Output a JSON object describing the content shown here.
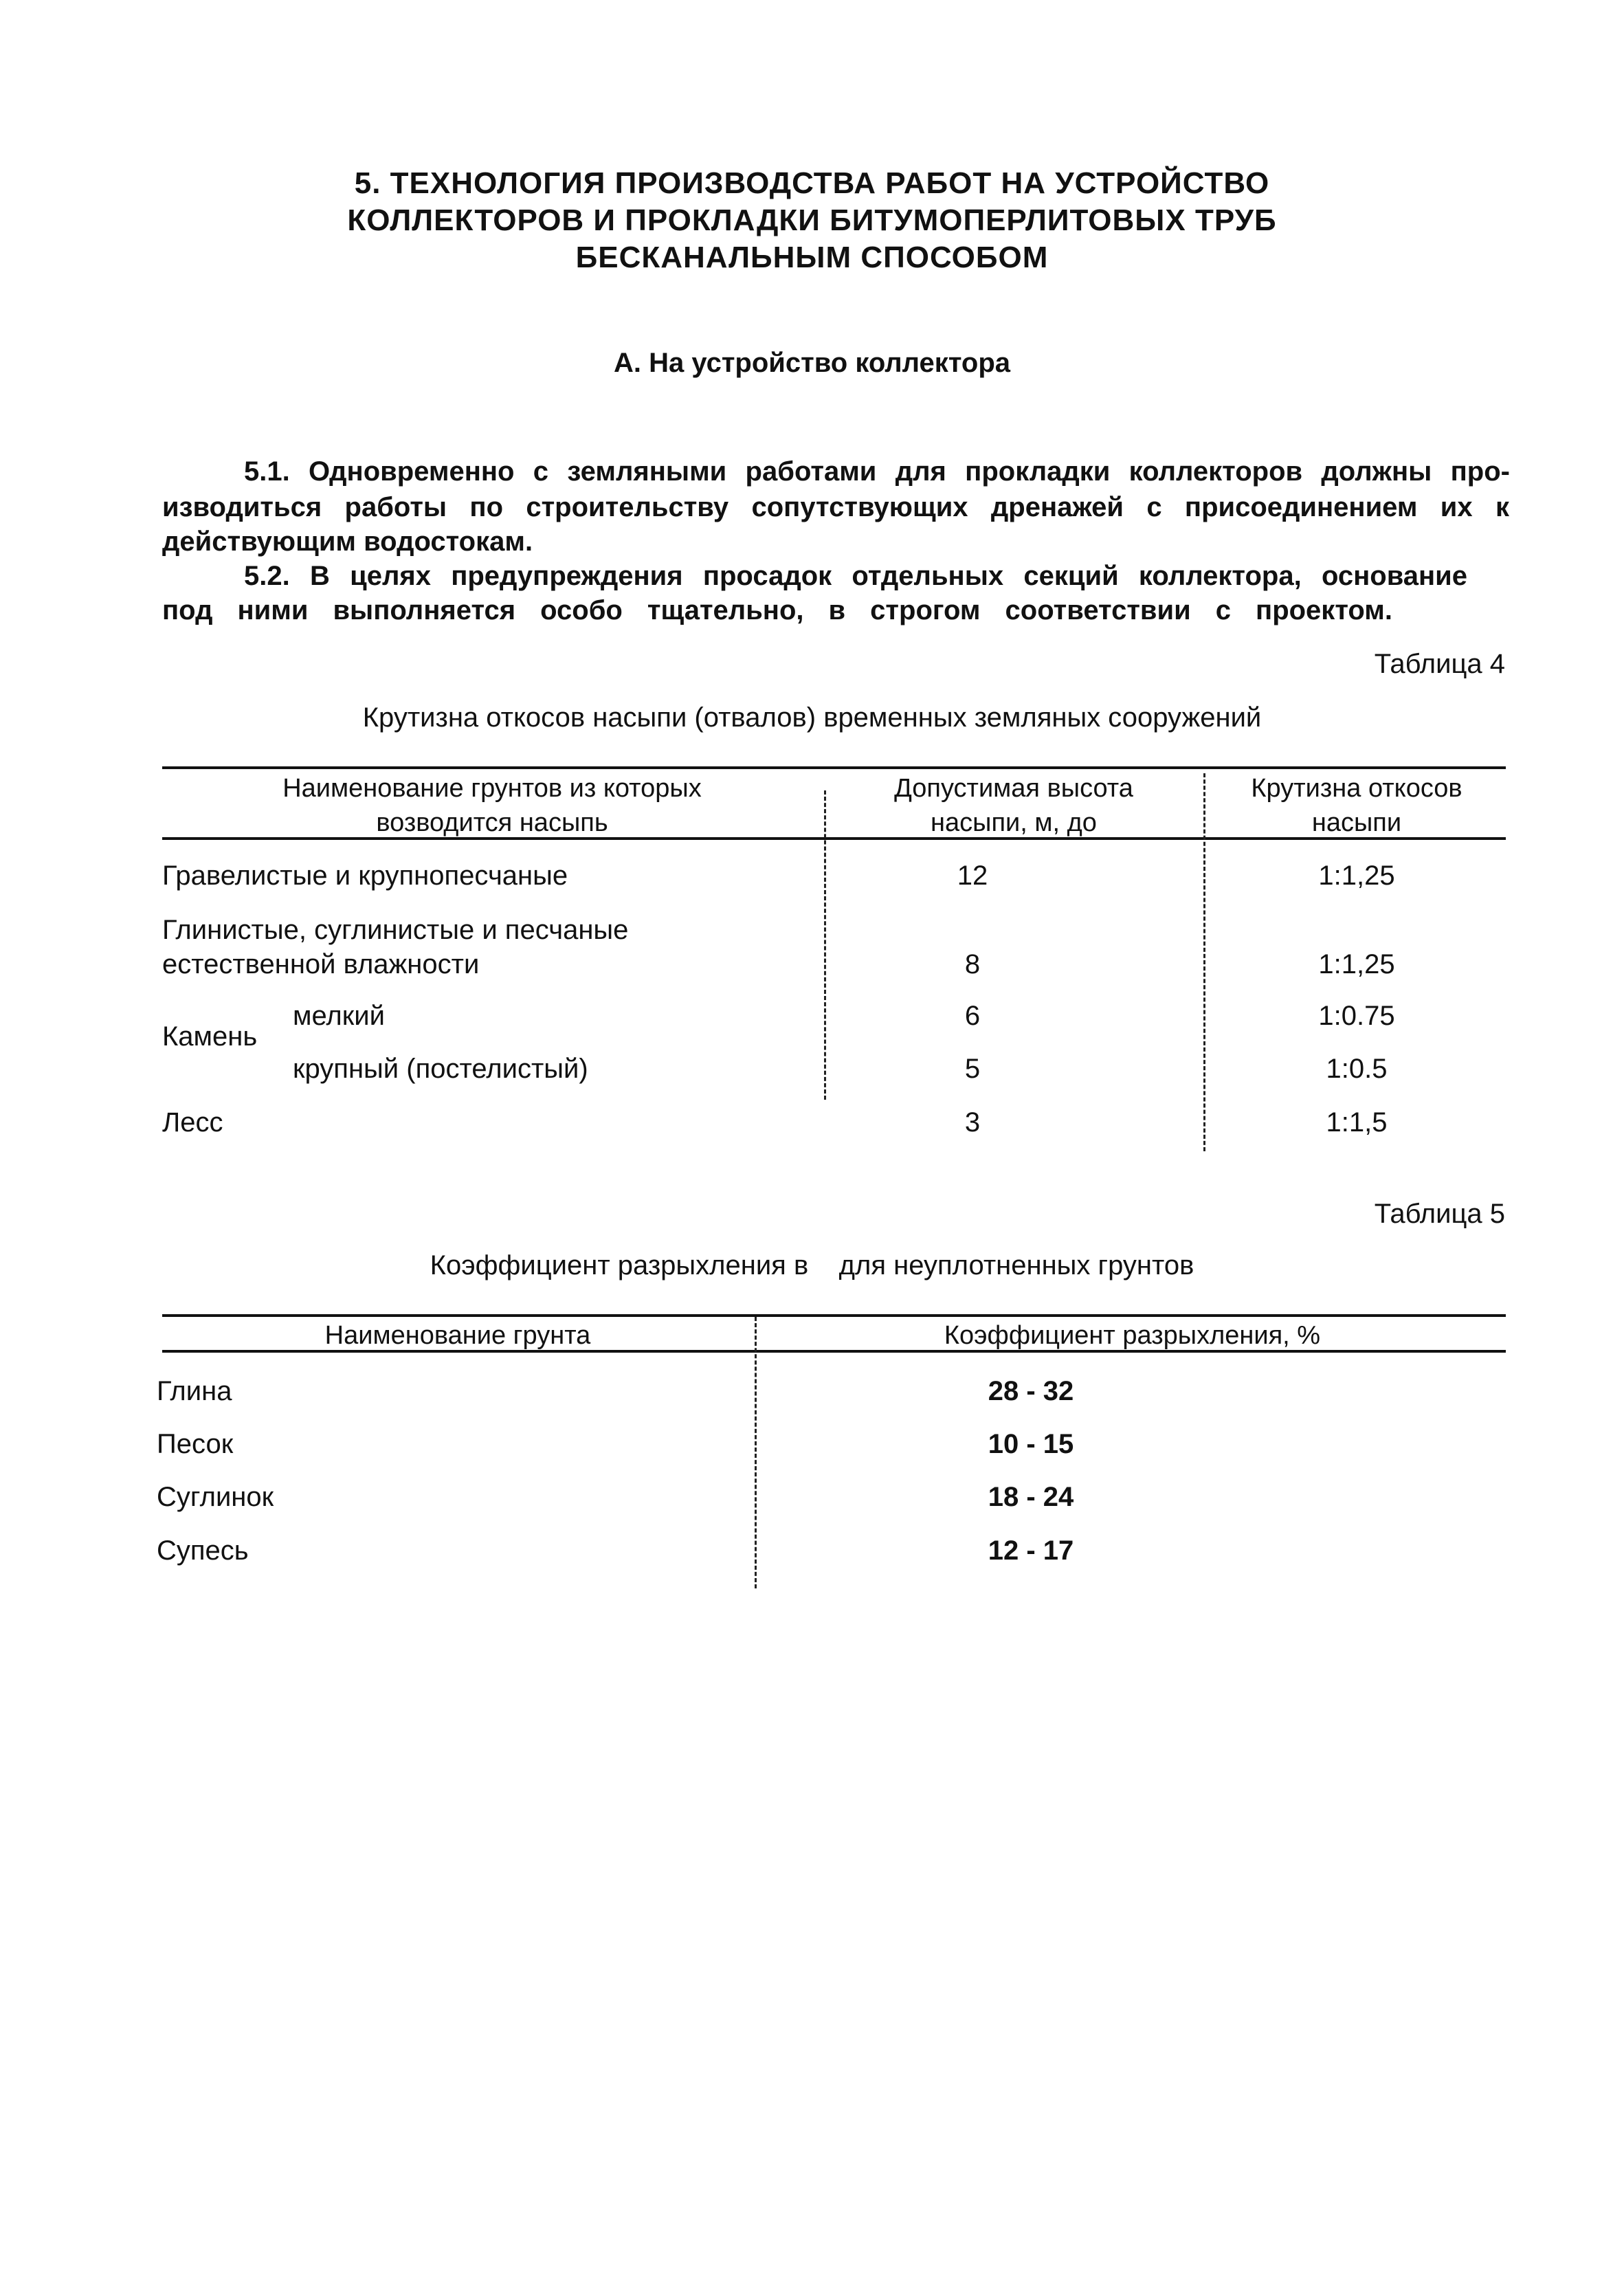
{
  "heading": {
    "lines": [
      "5. ТЕХНОЛОГИЯ ПРОИЗВОДСТВА РАБОТ НА УСТРОЙСТВО",
      "КОЛЛЕКТОРОВ И ПРОКЛАДКИ БИТУМОПЕРЛИТОВЫХ ТРУБ",
      "БЕСКАНАЛЬНЫМ СПОСОБОМ"
    ],
    "subheading": "А. На устройство коллектора"
  },
  "paragraphs": {
    "p51": [
      "5.1. Одновременно с земляными работами для прокладки коллекторов должны про-",
      "изводиться работы по строительству сопутствующих дренажей с присоединением их   к",
      "действующим водостокам."
    ],
    "p52": [
      "5.2. В целях предупреждения просадок отдельных секций коллектора, основание",
      "под ними выполняется особо тщательно, в строгом соответствии с проектом."
    ]
  },
  "table4": {
    "label": "Таблица 4",
    "caption": "Крутизна откосов насыпи (отвалов) временных земляных сооружений",
    "headers": [
      [
        "Наименование грунтов из которых",
        "возводится насыпь"
      ],
      [
        "Допустимая высота",
        "насыпи, м, до"
      ],
      [
        "Крутизна откосов",
        "насыпи"
      ]
    ],
    "rows": [
      {
        "name": [
          "Гравелистые и крупнопесчаные"
        ],
        "height": "12",
        "slope": "1:1,25"
      },
      {
        "name": [
          "Глинистые, суглинистые и песчаные",
          "естественной влажности"
        ],
        "height": "8",
        "slope": "1:1,25"
      },
      {
        "group": "Камень",
        "name": [
          "мелкий"
        ],
        "height": "6",
        "slope": "1:0.75"
      },
      {
        "name": [
          "крупный (постелистый)"
        ],
        "height": "5",
        "slope": "1:0.5"
      },
      {
        "name": [
          "Лесс"
        ],
        "height": "3",
        "slope": "1:1,5"
      }
    ]
  },
  "table5": {
    "label": "Таблица 5",
    "caption": "Коэффициент разрыхления в    для неуплотненных грунтов",
    "headers": [
      "Наименование грунта",
      "Коэффициент разрыхления, %"
    ],
    "rows": [
      {
        "name": "Глина",
        "value": "28 - 32"
      },
      {
        "name": "Песок",
        "value": "10 - 15"
      },
      {
        "name": "Суглинок",
        "value": "18 - 24"
      },
      {
        "name": "Супесь",
        "value": "12 - 17"
      }
    ]
  }
}
